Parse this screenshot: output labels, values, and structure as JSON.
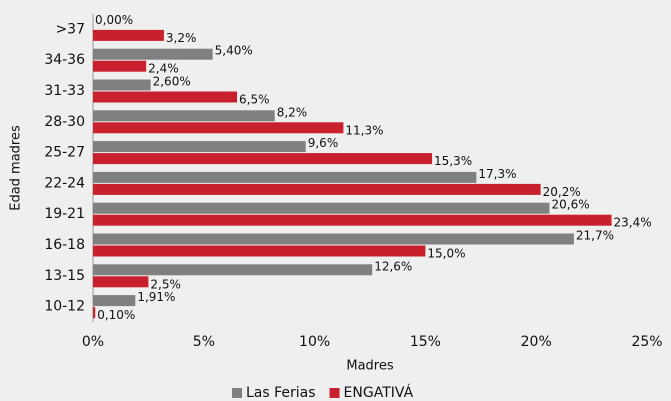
{
  "chart_data": {
    "type": "hbar",
    "ylabel": "Edad madres",
    "xlabel": "Madres",
    "categories": [
      ">37",
      "34-36",
      "31-33",
      "28-30",
      "25-27",
      "22-24",
      "19-21",
      "16-18",
      "13-15",
      "10-12"
    ],
    "series": [
      {
        "name": "Las Ferias",
        "color": "#808080",
        "values": [
          0.0,
          5.4,
          2.6,
          8.2,
          9.6,
          17.3,
          20.6,
          21.7,
          12.6,
          1.91
        ],
        "value_labels": [
          "0,00%",
          "5,40%",
          "2,60%",
          "8,2%",
          "9,6%",
          "17,3%",
          "20,6%",
          "21,7%",
          "12,6%",
          "1,91%"
        ]
      },
      {
        "name": "ENGATIVÁ",
        "color": "#c8202c",
        "values": [
          3.2,
          2.4,
          6.5,
          11.3,
          15.3,
          20.2,
          23.4,
          15.0,
          2.5,
          0.1
        ],
        "value_labels": [
          "3,2%",
          "2,4%",
          "6,5%",
          "11,3%",
          "15,3%",
          "20,2%",
          "23,4%",
          "15,0%",
          "2,5%",
          "0,10%"
        ]
      }
    ],
    "xlim": [
      0,
      25
    ],
    "xticks": [
      {
        "value": 0,
        "label": "0%"
      },
      {
        "value": 5,
        "label": "5%"
      },
      {
        "value": 10,
        "label": "10%"
      },
      {
        "value": 15,
        "label": "15%"
      },
      {
        "value": 20,
        "label": "20%"
      },
      {
        "value": 25,
        "label": "25%"
      }
    ],
    "legend": "bottom"
  }
}
